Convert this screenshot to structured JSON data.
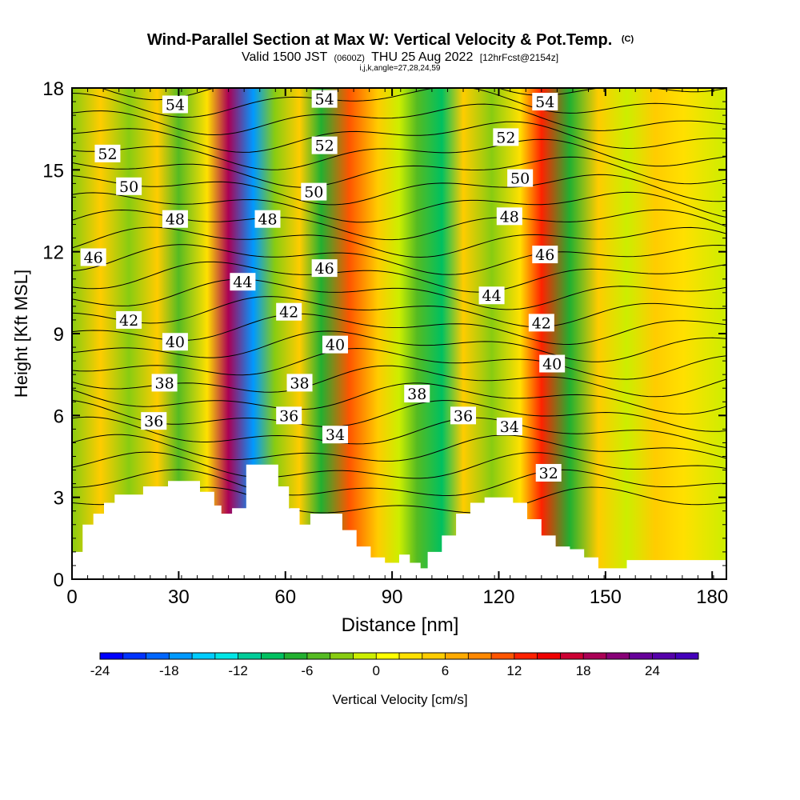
{
  "chart_data": {
    "type": "heatmap",
    "title": "Wind-Parallel Section at Max W: Vertical Velocity & Pot.Temp.",
    "title_mark": "(C)",
    "subtitle_main": "Valid 1500 JST",
    "subtitle_utc": "(0600Z)",
    "subtitle_date": "THU 25 Aug 2022",
    "subtitle_fcst": "[12hrFcst@2154z]",
    "subtitle_indices": "i,j,k,angle=27,28,24,59",
    "xlabel": "Distance [nm]",
    "ylabel": "Height [Kft MSL]",
    "xlim": [
      0,
      184
    ],
    "ylim": [
      0,
      18
    ],
    "x_ticks": [
      0,
      30,
      60,
      90,
      120,
      150,
      180
    ],
    "y_ticks": [
      0,
      3,
      6,
      9,
      12,
      15,
      18
    ],
    "colorbar": {
      "label": "Vertical Velocity [cm/s]",
      "vmin": -24,
      "vmax": 28,
      "step": 2,
      "tick_values": [
        -24,
        -18,
        -12,
        -6,
        0,
        6,
        12,
        18,
        24
      ],
      "colors": [
        "#0000ff",
        "#0033ff",
        "#0066ff",
        "#0099ff",
        "#00ccff",
        "#00e5e5",
        "#00cc99",
        "#00c060",
        "#22b030",
        "#55bb22",
        "#88cc11",
        "#ccee00",
        "#ffff00",
        "#ffe000",
        "#ffcc00",
        "#ffaa00",
        "#ff8800",
        "#ff5500",
        "#ff2200",
        "#ee0000",
        "#cc0033",
        "#aa0055",
        "#880077",
        "#660099",
        "#5500aa",
        "#4400bb"
      ]
    },
    "vertical_velocity_bands": [
      {
        "x": 0,
        "w": -4
      },
      {
        "x": 8,
        "w": 4
      },
      {
        "x": 16,
        "w": -3
      },
      {
        "x": 24,
        "w": 6
      },
      {
        "x": 30,
        "w": -6
      },
      {
        "x": 38,
        "w": 3
      },
      {
        "x": 44,
        "w": 18
      },
      {
        "x": 51,
        "w": -18
      },
      {
        "x": 57,
        "w": -4
      },
      {
        "x": 64,
        "w": 4
      },
      {
        "x": 70,
        "w": -8
      },
      {
        "x": 78,
        "w": 10
      },
      {
        "x": 86,
        "w": 6
      },
      {
        "x": 92,
        "w": -2
      },
      {
        "x": 97,
        "w": -6
      },
      {
        "x": 104,
        "w": -10
      },
      {
        "x": 110,
        "w": 5
      },
      {
        "x": 118,
        "w": -4
      },
      {
        "x": 126,
        "w": 2
      },
      {
        "x": 132,
        "w": 12
      },
      {
        "x": 140,
        "w": -8
      },
      {
        "x": 148,
        "w": 6
      },
      {
        "x": 156,
        "w": -2
      },
      {
        "x": 164,
        "w": 6
      },
      {
        "x": 172,
        "w": 2
      },
      {
        "x": 184,
        "w": -2
      }
    ],
    "potential_temperature_labels": [
      {
        "text": "54",
        "x": 29,
        "y": 17.4
      },
      {
        "text": "54",
        "x": 71,
        "y": 17.6
      },
      {
        "text": "54",
        "x": 133,
        "y": 17.5
      },
      {
        "text": "52",
        "x": 10,
        "y": 15.6
      },
      {
        "text": "52",
        "x": 71,
        "y": 15.9
      },
      {
        "text": "52",
        "x": 122,
        "y": 16.2
      },
      {
        "text": "50",
        "x": 16,
        "y": 14.4
      },
      {
        "text": "50",
        "x": 68,
        "y": 14.2
      },
      {
        "text": "50",
        "x": 126,
        "y": 14.7
      },
      {
        "text": "48",
        "x": 29,
        "y": 13.2
      },
      {
        "text": "48",
        "x": 55,
        "y": 13.2
      },
      {
        "text": "48",
        "x": 123,
        "y": 13.3
      },
      {
        "text": "46",
        "x": 6,
        "y": 11.8
      },
      {
        "text": "46",
        "x": 71,
        "y": 11.4
      },
      {
        "text": "46",
        "x": 133,
        "y": 11.9
      },
      {
        "text": "44",
        "x": 48,
        "y": 10.9
      },
      {
        "text": "44",
        "x": 118,
        "y": 10.4
      },
      {
        "text": "42",
        "x": 16,
        "y": 9.5
      },
      {
        "text": "42",
        "x": 61,
        "y": 9.8
      },
      {
        "text": "42",
        "x": 132,
        "y": 9.4
      },
      {
        "text": "40",
        "x": 29,
        "y": 8.7
      },
      {
        "text": "40",
        "x": 74,
        "y": 8.6
      },
      {
        "text": "40",
        "x": 135,
        "y": 7.9
      },
      {
        "text": "38",
        "x": 26,
        "y": 7.2
      },
      {
        "text": "38",
        "x": 64,
        "y": 7.2
      },
      {
        "text": "38",
        "x": 97,
        "y": 6.8
      },
      {
        "text": "36",
        "x": 23,
        "y": 5.8
      },
      {
        "text": "36",
        "x": 61,
        "y": 6.0
      },
      {
        "text": "36",
        "x": 110,
        "y": 6.0
      },
      {
        "text": "34",
        "x": 74,
        "y": 5.3
      },
      {
        "text": "34",
        "x": 123,
        "y": 5.6
      },
      {
        "text": "32",
        "x": 134,
        "y": 3.9
      }
    ],
    "potential_temperature_levels": [
      31,
      32,
      33,
      34,
      35,
      36,
      37,
      38,
      39,
      40,
      41,
      42,
      43,
      44,
      45,
      46,
      47,
      48,
      49,
      50,
      51,
      52,
      53,
      54,
      55
    ],
    "terrain_kft": [
      {
        "x": 0,
        "h": 1.0
      },
      {
        "x": 3,
        "h": 2.0
      },
      {
        "x": 6,
        "h": 2.4
      },
      {
        "x": 9,
        "h": 2.8
      },
      {
        "x": 12,
        "h": 3.1
      },
      {
        "x": 20,
        "h": 3.4
      },
      {
        "x": 27,
        "h": 3.6
      },
      {
        "x": 33,
        "h": 3.6
      },
      {
        "x": 36,
        "h": 3.2
      },
      {
        "x": 40,
        "h": 2.7
      },
      {
        "x": 42,
        "h": 2.4
      },
      {
        "x": 45,
        "h": 2.6
      },
      {
        "x": 49,
        "h": 4.2
      },
      {
        "x": 55,
        "h": 4.2
      },
      {
        "x": 58,
        "h": 3.4
      },
      {
        "x": 61,
        "h": 2.6
      },
      {
        "x": 64,
        "h": 2.0
      },
      {
        "x": 67,
        "h": 2.4
      },
      {
        "x": 72,
        "h": 2.4
      },
      {
        "x": 76,
        "h": 1.8
      },
      {
        "x": 80,
        "h": 1.2
      },
      {
        "x": 84,
        "h": 0.8
      },
      {
        "x": 88,
        "h": 0.6
      },
      {
        "x": 92,
        "h": 0.9
      },
      {
        "x": 95,
        "h": 0.6
      },
      {
        "x": 98,
        "h": 0.4
      },
      {
        "x": 100,
        "h": 1.0
      },
      {
        "x": 104,
        "h": 1.6
      },
      {
        "x": 108,
        "h": 2.4
      },
      {
        "x": 112,
        "h": 2.8
      },
      {
        "x": 116,
        "h": 3.0
      },
      {
        "x": 120,
        "h": 3.0
      },
      {
        "x": 124,
        "h": 2.8
      },
      {
        "x": 128,
        "h": 2.2
      },
      {
        "x": 132,
        "h": 1.6
      },
      {
        "x": 136,
        "h": 1.2
      },
      {
        "x": 140,
        "h": 1.1
      },
      {
        "x": 144,
        "h": 0.8
      },
      {
        "x": 148,
        "h": 0.4
      },
      {
        "x": 152,
        "h": 0.4
      },
      {
        "x": 156,
        "h": 0.7
      },
      {
        "x": 184,
        "h": 0.7
      }
    ]
  }
}
